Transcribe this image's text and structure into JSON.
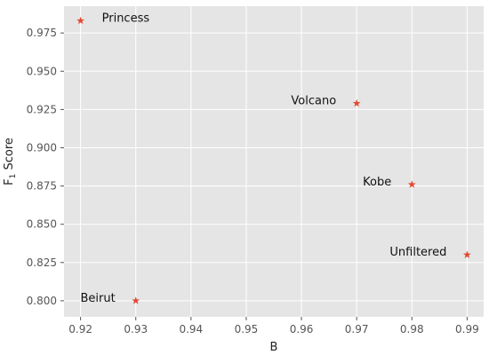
{
  "chart_data": {
    "type": "scatter",
    "title": "",
    "xlabel": "B",
    "ylabel": "F1 Score",
    "ylabel_main": "F",
    "ylabel_sub": "1",
    "ylabel_rest": " Score",
    "xlim": [
      0.917,
      0.993
    ],
    "ylim": [
      0.7895,
      0.9925
    ],
    "xticks": [
      0.92,
      0.93,
      0.94,
      0.95,
      0.96,
      0.97,
      0.98,
      0.99
    ],
    "xtick_labels": [
      "0.92",
      "0.93",
      "0.94",
      "0.95",
      "0.96",
      "0.97",
      "0.98",
      "0.99"
    ],
    "yticks": [
      0.8,
      0.825,
      0.85,
      0.875,
      0.9,
      0.925,
      0.95,
      0.975
    ],
    "ytick_labels": [
      "0.800",
      "0.825",
      "0.850",
      "0.875",
      "0.900",
      "0.925",
      "0.950",
      "0.975"
    ],
    "grid": true,
    "marker": "star",
    "marker_color": "#e24a33",
    "background_color": "#e5e5e5",
    "points": [
      {
        "label": "Princess",
        "x": 0.92,
        "y": 0.983,
        "label_side": "right"
      },
      {
        "label": "Volcano",
        "x": 0.97,
        "y": 0.929,
        "label_side": "left"
      },
      {
        "label": "Kobe",
        "x": 0.98,
        "y": 0.876,
        "label_side": "left"
      },
      {
        "label": "Unfiltered",
        "x": 0.99,
        "y": 0.83,
        "label_side": "left"
      },
      {
        "label": "Beirut",
        "x": 0.93,
        "y": 0.8,
        "label_side": "left"
      }
    ]
  }
}
